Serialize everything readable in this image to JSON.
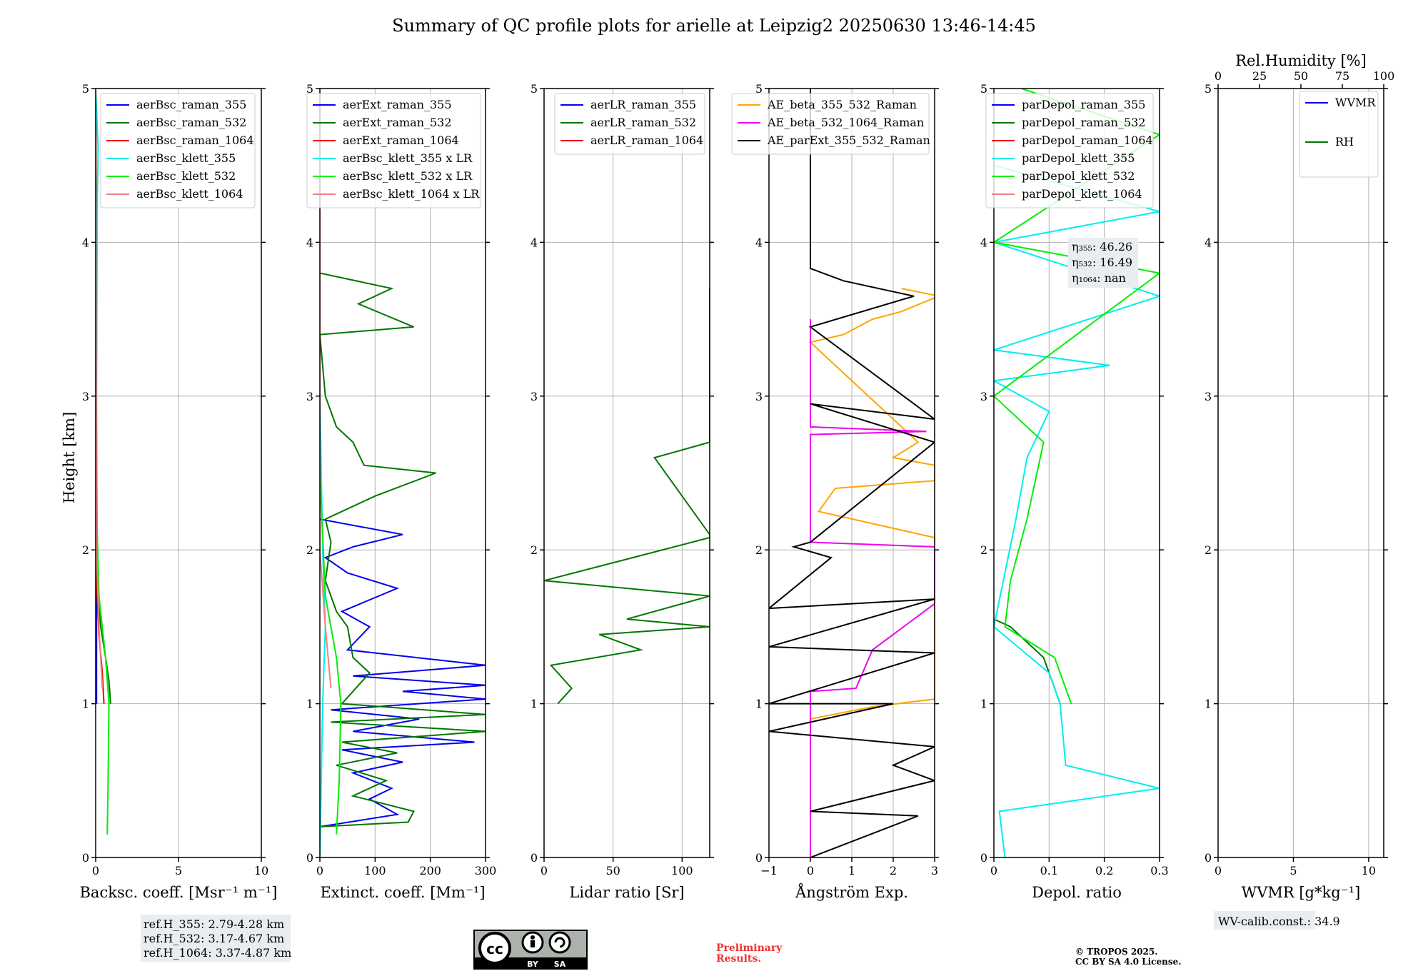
{
  "title": "Summary of QC profile plots for arielle at Leipzig2 20250630 13:46-14:45",
  "ylabel": "Height [km]",
  "colors": {
    "blue": "#0000ee",
    "green": "#007700",
    "red": "#ee0000",
    "cyan": "#00eeee",
    "lime": "#00ee00",
    "salmon": "#f08080",
    "orange": "#ffa500",
    "magenta": "#ee00ee",
    "black": "#000000"
  },
  "footer": {
    "refH": [
      "ref.H_355: 2.79-4.28 km",
      "ref.H_532: 3.17-4.67 km",
      "ref.H_1064: 3.37-4.87 km"
    ],
    "cc_icon": "cc-by-sa-license-icon",
    "cc_by": "BY",
    "cc_sa": "SA",
    "preliminary": [
      "Preliminary",
      "Results."
    ],
    "copyright": [
      "© TROPOS 2025.",
      "CC BY SA 4.0 License."
    ],
    "wv_calib": "WV-calib.const.: 34.9"
  },
  "chart_data": [
    {
      "type": "line",
      "xlabel": "Backsc. coeff. [Msr⁻¹ m⁻¹]",
      "xlim": [
        0,
        10
      ],
      "ylim": [
        0,
        5
      ],
      "xticks": [
        0,
        5,
        10
      ],
      "yticks": [
        0,
        1,
        2,
        3,
        4,
        5
      ],
      "legend": "top-right",
      "series": [
        {
          "name": "aerBsc_raman_355",
          "color": "blue",
          "points": [
            [
              0.05,
              1.0
            ],
            [
              0.05,
              2.1
            ],
            [
              0.0,
              3.0
            ],
            [
              0.0,
              5.0
            ]
          ]
        },
        {
          "name": "aerBsc_raman_532",
          "color": "green",
          "points": [
            [
              0.9,
              1.0
            ],
            [
              0.8,
              1.15
            ],
            [
              0.6,
              1.3
            ],
            [
              0.3,
              1.5
            ],
            [
              0.1,
              1.75
            ],
            [
              0.05,
              2.1
            ],
            [
              0.0,
              3.0
            ],
            [
              0.05,
              3.7
            ],
            [
              0.0,
              5.0
            ]
          ]
        },
        {
          "name": "aerBsc_raman_1064",
          "color": "red",
          "points": [
            [
              0.5,
              1.0
            ],
            [
              0.4,
              1.2
            ],
            [
              0.2,
              1.45
            ],
            [
              0.05,
              1.8
            ],
            [
              0.05,
              2.1
            ],
            [
              0.0,
              5.0
            ]
          ]
        },
        {
          "name": "aerBsc_klett_355",
          "color": "cyan",
          "points": [
            [
              0.1,
              2.0
            ],
            [
              0.05,
              3.0
            ],
            [
              0.1,
              4.3
            ],
            [
              0.15,
              4.6
            ],
            [
              0.0,
              5.0
            ]
          ]
        },
        {
          "name": "aerBsc_klett_532",
          "color": "lime",
          "points": [
            [
              0.7,
              0.15
            ],
            [
              0.75,
              0.5
            ],
            [
              0.8,
              1.0
            ],
            [
              0.6,
              1.3
            ],
            [
              0.2,
              1.7
            ],
            [
              0.0,
              2.5
            ],
            [
              0.0,
              5.0
            ]
          ]
        },
        {
          "name": "aerBsc_klett_1064",
          "color": "salmon",
          "points": [
            [
              0.4,
              1.1
            ],
            [
              0.2,
              1.5
            ],
            [
              0.05,
              2.0
            ],
            [
              0.0,
              5.0
            ]
          ]
        }
      ]
    },
    {
      "type": "line",
      "xlabel": "Extinct. coeff. [Mm⁻¹]",
      "xlim": [
        0,
        300
      ],
      "ylim": [
        0,
        5
      ],
      "xticks": [
        0,
        100,
        200,
        300
      ],
      "yticks": [
        0,
        1,
        2,
        3,
        4,
        5
      ],
      "legend": "top-right",
      "series": [
        {
          "name": "aerExt_raman_355",
          "color": "blue",
          "points": [
            [
              0,
              0.2
            ],
            [
              140,
              0.28
            ],
            [
              90,
              0.38
            ],
            [
              130,
              0.45
            ],
            [
              60,
              0.55
            ],
            [
              150,
              0.62
            ],
            [
              40,
              0.7
            ],
            [
              280,
              0.75
            ],
            [
              60,
              0.82
            ],
            [
              180,
              0.9
            ],
            [
              20,
              0.96
            ],
            [
              300,
              1.03
            ],
            [
              150,
              1.08
            ],
            [
              300,
              1.12
            ],
            [
              60,
              1.18
            ],
            [
              300,
              1.25
            ],
            [
              50,
              1.35
            ],
            [
              90,
              1.5
            ],
            [
              40,
              1.6
            ],
            [
              140,
              1.75
            ],
            [
              50,
              1.85
            ],
            [
              10,
              1.95
            ],
            [
              60,
              2.02
            ],
            [
              150,
              2.1
            ],
            [
              0,
              2.2
            ]
          ]
        },
        {
          "name": "aerExt_raman_532",
          "color": "green",
          "points": [
            [
              0,
              0.2
            ],
            [
              160,
              0.23
            ],
            [
              170,
              0.3
            ],
            [
              60,
              0.4
            ],
            [
              120,
              0.5
            ],
            [
              30,
              0.6
            ],
            [
              140,
              0.68
            ],
            [
              40,
              0.75
            ],
            [
              300,
              0.82
            ],
            [
              20,
              0.88
            ],
            [
              300,
              0.93
            ],
            [
              40,
              1.0
            ],
            [
              90,
              1.2
            ],
            [
              60,
              1.3
            ],
            [
              50,
              1.5
            ],
            [
              30,
              1.6
            ],
            [
              10,
              1.8
            ],
            [
              20,
              2.05
            ],
            [
              10,
              2.2
            ],
            [
              100,
              2.35
            ],
            [
              210,
              2.5
            ],
            [
              80,
              2.55
            ],
            [
              60,
              2.7
            ],
            [
              30,
              2.8
            ],
            [
              10,
              3.0
            ],
            [
              0,
              3.4
            ],
            [
              170,
              3.45
            ],
            [
              70,
              3.6
            ],
            [
              130,
              3.7
            ],
            [
              0,
              3.8
            ]
          ]
        },
        {
          "name": "aerExt_raman_1064",
          "color": "red",
          "points": []
        },
        {
          "name": "aerBsc_klett_355 x LR",
          "color": "cyan",
          "points": [
            [
              0,
              0.0
            ],
            [
              5,
              1.0
            ],
            [
              10,
              1.5
            ],
            [
              5,
              2.0
            ],
            [
              0,
              3.0
            ],
            [
              0,
              3.8
            ],
            [
              0,
              5.0
            ]
          ]
        },
        {
          "name": "aerBsc_klett_532 x LR",
          "color": "lime",
          "points": [
            [
              30,
              0.15
            ],
            [
              35,
              0.5
            ],
            [
              38,
              1.0
            ],
            [
              30,
              1.3
            ],
            [
              10,
              1.7
            ],
            [
              0,
              2.5
            ],
            [
              0,
              5.0
            ]
          ]
        },
        {
          "name": "aerBsc_klett_1064 x LR",
          "color": "salmon",
          "points": [
            [
              20,
              1.1
            ],
            [
              10,
              1.5
            ],
            [
              0,
              2.0
            ],
            [
              0,
              5.0
            ]
          ]
        }
      ]
    },
    {
      "type": "line",
      "xlabel": "Lidar ratio [Sr]",
      "xlim": [
        0,
        120
      ],
      "ylim": [
        0,
        5
      ],
      "xticks": [
        0,
        50,
        100
      ],
      "yticks": [
        0,
        1,
        2,
        3,
        4,
        5
      ],
      "legend": "top-right",
      "series": [
        {
          "name": "aerLR_raman_355",
          "color": "blue",
          "points": []
        },
        {
          "name": "aerLR_raman_532",
          "color": "green",
          "points": [
            [
              10,
              1.0
            ],
            [
              20,
              1.1
            ],
            [
              5,
              1.25
            ],
            [
              70,
              1.35
            ],
            [
              40,
              1.45
            ],
            [
              120,
              1.5
            ],
            [
              60,
              1.55
            ],
            [
              120,
              1.7
            ],
            [
              0,
              1.8
            ],
            [
              120,
              2.08
            ],
            [
              120,
              2.1
            ],
            [
              80,
              2.6
            ],
            [
              120,
              2.7
            ],
            [
              120,
              2.8
            ],
            [
              120,
              3.6
            ],
            [
              120,
              3.7
            ]
          ]
        },
        {
          "name": "aerLR_raman_1064",
          "color": "red",
          "points": []
        }
      ]
    },
    {
      "type": "line",
      "xlabel": "Ångström Exp.",
      "xlim": [
        -1,
        3
      ],
      "ylim": [
        0,
        5
      ],
      "xticks": [
        -1,
        0,
        1,
        2,
        3
      ],
      "yticks": [
        0,
        1,
        2,
        3,
        4,
        5
      ],
      "legend": "top-left",
      "series": [
        {
          "name": "AE_beta_355_532_Raman",
          "color": "orange",
          "points": [
            [
              0,
              0.9
            ],
            [
              1.5,
              0.98
            ],
            [
              3,
              1.03
            ],
            [
              3,
              2.08
            ],
            [
              0.2,
              2.25
            ],
            [
              0.6,
              2.4
            ],
            [
              3,
              2.45
            ],
            [
              3,
              2.55
            ],
            [
              2,
              2.6
            ],
            [
              2.6,
              2.7
            ],
            [
              0,
              3.35
            ],
            [
              0.8,
              3.4
            ],
            [
              1.5,
              3.5
            ],
            [
              2.2,
              3.55
            ],
            [
              3.1,
              3.65
            ],
            [
              2.2,
              3.7
            ]
          ]
        },
        {
          "name": "AE_beta_532_1064_Raman",
          "color": "magenta",
          "points": [
            [
              0,
              0.0
            ],
            [
              0,
              1.08
            ],
            [
              1.1,
              1.1
            ],
            [
              1.5,
              1.35
            ],
            [
              3,
              1.65
            ],
            [
              3,
              2.02
            ],
            [
              0,
              2.05
            ],
            [
              0,
              2.75
            ],
            [
              2.8,
              2.77
            ],
            [
              0,
              2.8
            ],
            [
              0,
              3.5
            ]
          ]
        },
        {
          "name": "AE_parExt_355_532_Raman",
          "color": "black",
          "points": [
            [
              0,
              0.0
            ],
            [
              2.6,
              0.27
            ],
            [
              0,
              0.3
            ],
            [
              3,
              0.5
            ],
            [
              2.0,
              0.6
            ],
            [
              3,
              0.72
            ],
            [
              -1,
              0.82
            ],
            [
              2,
              1.0
            ],
            [
              -1,
              1.0
            ],
            [
              3,
              1.33
            ],
            [
              -1,
              1.37
            ],
            [
              3,
              1.68
            ],
            [
              -1,
              1.62
            ],
            [
              0.5,
              1.95
            ],
            [
              -0.4,
              2.02
            ],
            [
              0,
              2.05
            ],
            [
              3,
              2.7
            ],
            [
              0,
              2.95
            ],
            [
              3,
              2.85
            ],
            [
              0,
              3.45
            ],
            [
              2.5,
              3.65
            ],
            [
              0.8,
              3.75
            ],
            [
              0,
              3.83
            ],
            [
              0,
              5.0
            ]
          ]
        }
      ]
    },
    {
      "type": "line",
      "xlabel": "Depol. ratio",
      "xlim": [
        0,
        0.3
      ],
      "ylim": [
        0,
        5
      ],
      "xticks": [
        0,
        0.1,
        0.2,
        0.3
      ],
      "yticks": [
        0,
        1,
        2,
        3,
        4,
        5
      ],
      "legend": "top-left",
      "annotations": [
        "η₃₅₅: 46.26",
        "η₅₃₂: 16.49",
        "η₁₀₆₄: nan"
      ],
      "series": [
        {
          "name": "parDepol_raman_355",
          "color": "blue",
          "points": []
        },
        {
          "name": "parDepol_raman_532",
          "color": "green",
          "points": [
            [
              0.12,
              1.0
            ],
            [
              0.09,
              1.3
            ],
            [
              0.03,
              1.5
            ],
            [
              0.0,
              1.55
            ]
          ]
        },
        {
          "name": "parDepol_raman_1064",
          "color": "red",
          "points": []
        },
        {
          "name": "parDepol_klett_355",
          "color": "cyan",
          "points": [
            [
              0.02,
              0.0
            ],
            [
              0.01,
              0.3
            ],
            [
              0.3,
              0.45
            ],
            [
              0.13,
              0.6
            ],
            [
              0.12,
              1.0
            ],
            [
              0.1,
              1.2
            ],
            [
              0.0,
              1.5
            ],
            [
              0.04,
              2.2
            ],
            [
              0.06,
              2.6
            ],
            [
              0.1,
              2.9
            ],
            [
              0.0,
              3.1
            ],
            [
              0.21,
              3.2
            ],
            [
              0.0,
              3.3
            ],
            [
              0.3,
              3.65
            ],
            [
              0.0,
              4.0
            ],
            [
              0.3,
              4.2
            ],
            [
              0.0,
              4.5
            ]
          ]
        },
        {
          "name": "parDepol_klett_532",
          "color": "lime",
          "points": [
            [
              0.14,
              1.0
            ],
            [
              0.11,
              1.3
            ],
            [
              0.02,
              1.5
            ],
            [
              0.03,
              1.8
            ],
            [
              0.06,
              2.2
            ],
            [
              0.09,
              2.7
            ],
            [
              0.0,
              3.0
            ],
            [
              0.3,
              3.8
            ],
            [
              0.0,
              4.0
            ],
            [
              0.3,
              4.7
            ],
            [
              0.05,
              5.0
            ]
          ]
        },
        {
          "name": "parDepol_klett_1064",
          "color": "salmon",
          "points": []
        }
      ]
    },
    {
      "type": "line",
      "xlabel": "WVMR [g*kg⁻¹]",
      "top_xlabel": "Rel.Humidity [%]",
      "xlim": [
        0,
        11
      ],
      "ylim": [
        0,
        5
      ],
      "xticks": [
        0,
        5,
        10
      ],
      "yticks": [
        0,
        1,
        2,
        3,
        4,
        5
      ],
      "top_xticks": [
        0,
        25,
        50,
        75,
        100
      ],
      "legend": "top-right",
      "series": [
        {
          "name": "WVMR",
          "color": "blue",
          "points": []
        },
        {
          "name": "RH",
          "color": "green",
          "points": []
        }
      ]
    }
  ]
}
